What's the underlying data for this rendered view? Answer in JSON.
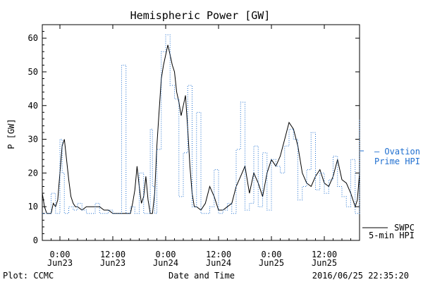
{
  "chart_data": {
    "type": "line",
    "title": "Hemispheric Power [GW]",
    "xlabel": "Date and Time",
    "ylabel": "P [GW]",
    "ylim": [
      0,
      64
    ],
    "yticks": [
      0,
      10,
      20,
      30,
      40,
      50,
      60
    ],
    "xlim_hours": [
      -4,
      68
    ],
    "xticks": [
      {
        "h": 0,
        "top": "0:00",
        "bottom": "Jun23"
      },
      {
        "h": 12,
        "top": "12:00",
        "bottom": "Jun23"
      },
      {
        "h": 24,
        "top": "0:00",
        "bottom": "Jun24"
      },
      {
        "h": 36,
        "top": "12:00",
        "bottom": "Jun24"
      },
      {
        "h": 48,
        "top": "0:00",
        "bottom": "Jun25"
      },
      {
        "h": 60,
        "top": "12:00",
        "bottom": "Jun25"
      }
    ],
    "series": [
      {
        "name": "SWPC 5-min HPI",
        "legend_lines": [
          "SWPC",
          "5-min HPI"
        ],
        "color": "#000000",
        "style": "solid",
        "points": [
          [
            -4,
            14
          ],
          [
            -3.5,
            10
          ],
          [
            -3,
            8
          ],
          [
            -2.5,
            8
          ],
          [
            -2,
            8
          ],
          [
            -1.5,
            11
          ],
          [
            -1,
            10
          ],
          [
            -0.5,
            12
          ],
          [
            0,
            20
          ],
          [
            0.5,
            28
          ],
          [
            1,
            30
          ],
          [
            1.5,
            24
          ],
          [
            2,
            18
          ],
          [
            2.5,
            13
          ],
          [
            3,
            11
          ],
          [
            3.5,
            10
          ],
          [
            4,
            10
          ],
          [
            5,
            9
          ],
          [
            6,
            10
          ],
          [
            7,
            10
          ],
          [
            8,
            10
          ],
          [
            9,
            10
          ],
          [
            10,
            9
          ],
          [
            11,
            9
          ],
          [
            12,
            8
          ],
          [
            13,
            8
          ],
          [
            14,
            8
          ],
          [
            15,
            8
          ],
          [
            16,
            8
          ],
          [
            16.5,
            11
          ],
          [
            17,
            15
          ],
          [
            17.5,
            22
          ],
          [
            18,
            16
          ],
          [
            18.5,
            11
          ],
          [
            19,
            13
          ],
          [
            19.5,
            19
          ],
          [
            20,
            12
          ],
          [
            20.5,
            8
          ],
          [
            21,
            8
          ],
          [
            21.5,
            14
          ],
          [
            22,
            28
          ],
          [
            22.5,
            38
          ],
          [
            23,
            48
          ],
          [
            23.5,
            52
          ],
          [
            24,
            55
          ],
          [
            24.5,
            58
          ],
          [
            25,
            55
          ],
          [
            25.5,
            52
          ],
          [
            26,
            50
          ],
          [
            26.5,
            44
          ],
          [
            27,
            41
          ],
          [
            27.5,
            37
          ],
          [
            28,
            40
          ],
          [
            28.5,
            43
          ],
          [
            29,
            33
          ],
          [
            29.5,
            22
          ],
          [
            30,
            14
          ],
          [
            30.5,
            10
          ],
          [
            31,
            10
          ],
          [
            32,
            9
          ],
          [
            33,
            11
          ],
          [
            34,
            16
          ],
          [
            35,
            13
          ],
          [
            36,
            9
          ],
          [
            37,
            9
          ],
          [
            38,
            10
          ],
          [
            39,
            11
          ],
          [
            40,
            16
          ],
          [
            41,
            19
          ],
          [
            42,
            22
          ],
          [
            43,
            14
          ],
          [
            44,
            20
          ],
          [
            45,
            17
          ],
          [
            46,
            13
          ],
          [
            47,
            20
          ],
          [
            48,
            24
          ],
          [
            49,
            22
          ],
          [
            50,
            25
          ],
          [
            51,
            30
          ],
          [
            52,
            35
          ],
          [
            53,
            33
          ],
          [
            54,
            28
          ],
          [
            55,
            20
          ],
          [
            56,
            17
          ],
          [
            57,
            16
          ],
          [
            58,
            19
          ],
          [
            59,
            21
          ],
          [
            60,
            17
          ],
          [
            61,
            16
          ],
          [
            62,
            19
          ],
          [
            63,
            24
          ],
          [
            64,
            18
          ],
          [
            65,
            17
          ],
          [
            66,
            14
          ],
          [
            67,
            10
          ],
          [
            67.5,
            12
          ],
          [
            68,
            20
          ]
        ]
      },
      {
        "name": "Ovation Prime HPI",
        "legend_lines": [
          "– Ovation",
          "Prime HPI"
        ],
        "color": "#1f6fd0",
        "style": "dotted",
        "points": [
          [
            -4,
            8
          ],
          [
            -2,
            14
          ],
          [
            -1,
            8
          ],
          [
            0,
            30
          ],
          [
            0.5,
            20
          ],
          [
            1,
            8
          ],
          [
            2,
            10
          ],
          [
            3,
            9
          ],
          [
            4,
            11
          ],
          [
            5,
            9
          ],
          [
            6,
            8
          ],
          [
            7,
            8
          ],
          [
            8,
            11
          ],
          [
            9,
            8
          ],
          [
            10,
            8
          ],
          [
            11,
            9
          ],
          [
            12,
            8
          ],
          [
            13,
            8
          ],
          [
            14,
            52
          ],
          [
            15,
            8
          ],
          [
            16,
            10
          ],
          [
            17,
            8
          ],
          [
            18,
            20
          ],
          [
            19,
            8
          ],
          [
            20,
            8
          ],
          [
            20.5,
            33
          ],
          [
            21,
            16
          ],
          [
            21.5,
            8
          ],
          [
            22,
            27
          ],
          [
            23,
            56
          ],
          [
            24,
            61
          ],
          [
            25,
            46
          ],
          [
            26,
            42
          ],
          [
            27,
            13
          ],
          [
            28,
            26
          ],
          [
            29,
            46
          ],
          [
            30,
            10
          ],
          [
            31,
            38
          ],
          [
            32,
            8
          ],
          [
            33,
            8
          ],
          [
            34,
            10
          ],
          [
            35,
            21
          ],
          [
            36,
            8
          ],
          [
            37,
            9
          ],
          [
            38,
            11
          ],
          [
            39,
            8
          ],
          [
            40,
            27
          ],
          [
            41,
            41
          ],
          [
            42,
            9
          ],
          [
            43,
            11
          ],
          [
            44,
            28
          ],
          [
            45,
            10
          ],
          [
            46,
            26
          ],
          [
            47,
            9
          ],
          [
            48,
            24
          ],
          [
            49,
            22
          ],
          [
            50,
            20
          ],
          [
            51,
            28
          ],
          [
            52,
            33
          ],
          [
            53,
            30
          ],
          [
            54,
            12
          ],
          [
            55,
            16
          ],
          [
            56,
            21
          ],
          [
            57,
            32
          ],
          [
            58,
            15
          ],
          [
            59,
            20
          ],
          [
            60,
            14
          ],
          [
            61,
            18
          ],
          [
            62,
            25
          ],
          [
            63,
            16
          ],
          [
            64,
            13
          ],
          [
            65,
            10
          ],
          [
            66,
            24
          ],
          [
            67,
            8
          ],
          [
            68,
            36
          ]
        ]
      }
    ]
  },
  "footer": {
    "left": "Plot: CCMC",
    "right": "2016/06/25 22:35:20"
  }
}
